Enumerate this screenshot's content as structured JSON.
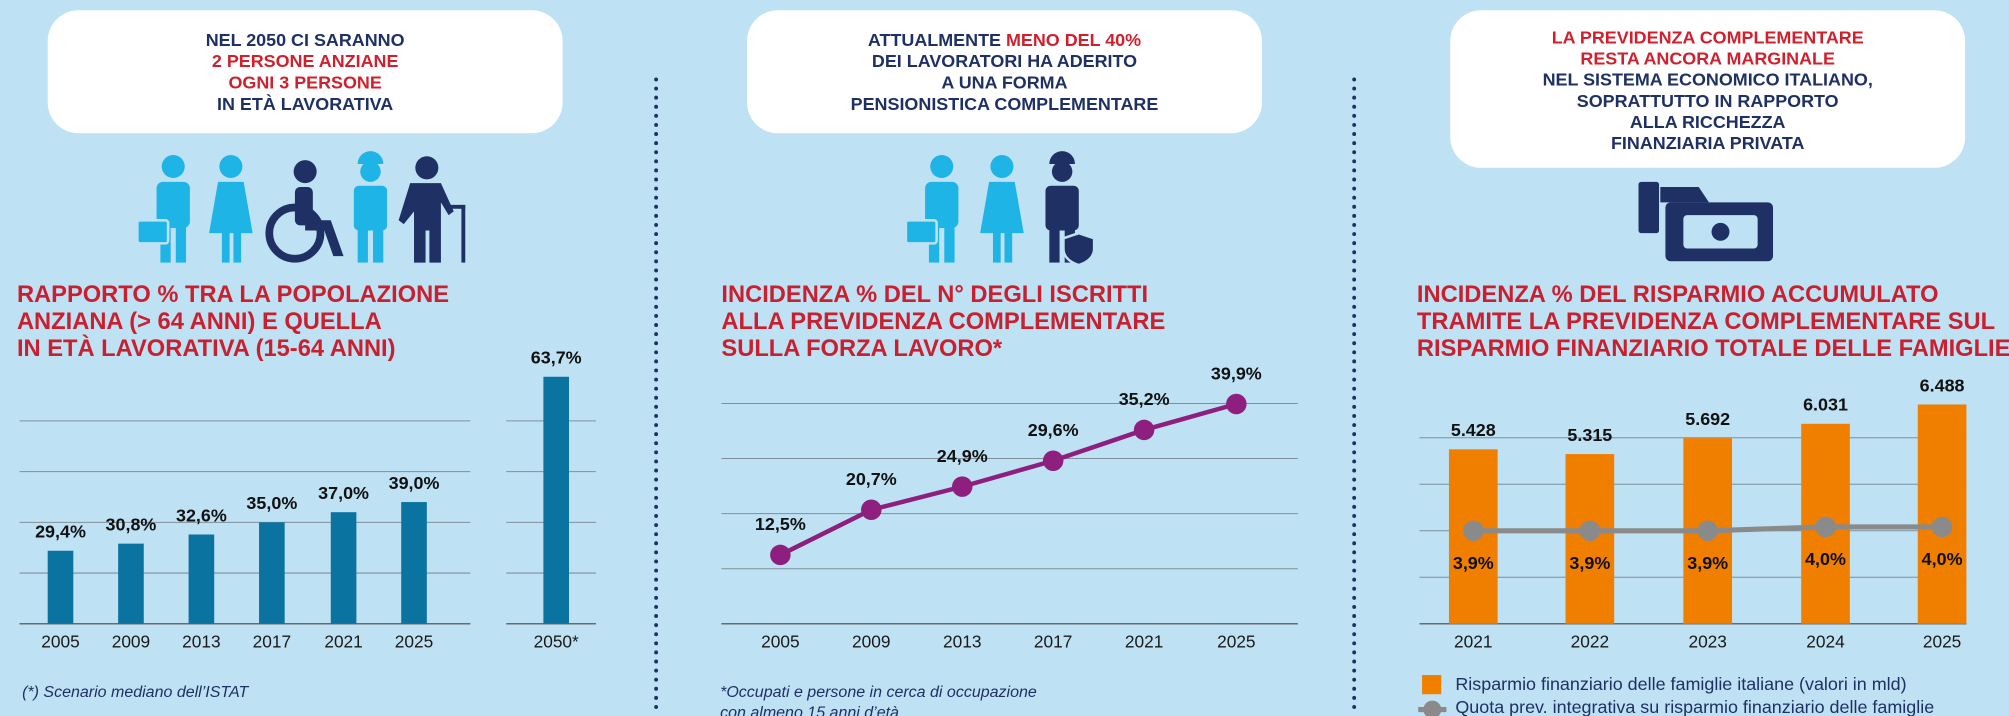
{
  "chart_data": [
    {
      "type": "bar",
      "callout": [
        [
          {
            "text": "NEL 2050 CI SARANNO",
            "color": "#1f3064"
          }
        ],
        [
          {
            "text": "2 PERSONE ANZIANE",
            "color": "#d0202e"
          }
        ],
        [
          {
            "text": "OGNI 3 PERSONE",
            "color": "#d0202e"
          }
        ],
        [
          {
            "text": "IN ETÀ LAVORATIVA",
            "color": "#1f3064"
          }
        ]
      ],
      "title": [
        "RAPPORTO % TRA LA POPOLAZIONE",
        "ANZIANA (> 64 ANNI) E QUELLA",
        "IN ETÀ LAVORATIVA (15-64 ANNI)"
      ],
      "categories": [
        "2005",
        "2009",
        "2013",
        "2017",
        "2021",
        "2025",
        "2050*"
      ],
      "values": [
        29.4,
        30.8,
        32.6,
        35.0,
        37.0,
        39.0,
        63.7
      ],
      "value_labels": [
        "29,4%",
        "30,8%",
        "32,6%",
        "35,0%",
        "37,0%",
        "39,0%",
        "63,7%"
      ],
      "color": "#0b73a0",
      "ylim": [
        15,
        65
      ],
      "yticks": [
        25,
        35,
        45,
        55
      ],
      "grid": true,
      "note": [
        "(*) Scenario mediano dell’ISTAT"
      ]
    },
    {
      "type": "line",
      "callout": [
        [
          {
            "text": "ATTUALMENTE ",
            "color": "#1f3064"
          },
          {
            "text": "MENO DEL 40%",
            "color": "#d0202e"
          }
        ],
        [
          {
            "text": "DEI LAVORATORI HA ADERITO",
            "color": "#1f3064"
          }
        ],
        [
          {
            "text": "A UNA FORMA",
            "color": "#1f3064"
          }
        ],
        [
          {
            "text": "PENSIONISTICA COMPLEMENTARE",
            "color": "#1f3064"
          }
        ]
      ],
      "title": [
        "INCIDENZA % DEL N° DEGLI ISCRITTI",
        "ALLA PREVIDENZA COMPLEMENTARE",
        "SULLA FORZA LAVORO*"
      ],
      "categories": [
        "2005",
        "2009",
        "2013",
        "2017",
        "2021",
        "2025"
      ],
      "values": [
        12.5,
        20.7,
        24.9,
        29.6,
        35.2,
        39.9
      ],
      "value_labels": [
        "12,5%",
        "20,7%",
        "24,9%",
        "29,6%",
        "35,2%",
        "39,9%"
      ],
      "color": "#8e1f7e",
      "ylim": [
        0,
        40
      ],
      "yticks": [
        0,
        10,
        20,
        30,
        40
      ],
      "grid": true,
      "note": [
        "*Occupati e persone in cerca di occupazione",
        "con almeno 15 anni d’età"
      ]
    },
    {
      "type": "combo",
      "callout": [
        [
          {
            "text": "LA PREVIDENZA COMPLEMENTARE",
            "color": "#d0202e"
          }
        ],
        [
          {
            "text": "RESTA ANCORA MARGINALE",
            "color": "#d0202e"
          }
        ],
        [
          {
            "text": "NEL SISTEMA ECONOMICO ITALIANO,",
            "color": "#1f3064"
          }
        ],
        [
          {
            "text": "SOPRATTUTTO IN RAPPORTO",
            "color": "#1f3064"
          }
        ],
        [
          {
            "text": "ALLA RICCHEZZA",
            "color": "#1f3064"
          }
        ],
        [
          {
            "text": "FINANZIARIA PRIVATA",
            "color": "#1f3064"
          }
        ]
      ],
      "title": [
        "INCIDENZA % DEL RISPARMIO ACCUMULATO",
        "TRAMITE LA PREVIDENZA COMPLEMENTARE SUL",
        "RISPARMIO FINANZIARIO TOTALE DELLE FAMIGLIE"
      ],
      "categories": [
        "2021",
        "2022",
        "2023",
        "2024",
        "2025"
      ],
      "series": [
        {
          "name": "Risparmio finanziario delle famiglie italiane (valori in mld)",
          "type": "bar",
          "color": "#f07f00",
          "values": [
            5428,
            5315,
            5692,
            6031,
            6488
          ],
          "value_labels": [
            "5.428",
            "5.315",
            "5.692",
            "6.031",
            "6.488"
          ]
        },
        {
          "name": "Quota prev. integrativa su risparmio finanziario delle famiglie",
          "type": "line",
          "axis": "y2",
          "color": "#8a8a8a",
          "values": [
            3.9,
            3.9,
            3.9,
            4.0,
            4.0
          ],
          "value_labels": [
            "3,9%",
            "3,9%",
            "3,9%",
            "4,0%",
            "4,0%"
          ]
        }
      ],
      "ylim": [
        1300,
        6800
      ],
      "yticks": [
        2400,
        3500,
        4600,
        5700
      ],
      "y2lim": [
        1.5,
        7.5
      ],
      "grid": true,
      "legend": "bottom"
    }
  ]
}
